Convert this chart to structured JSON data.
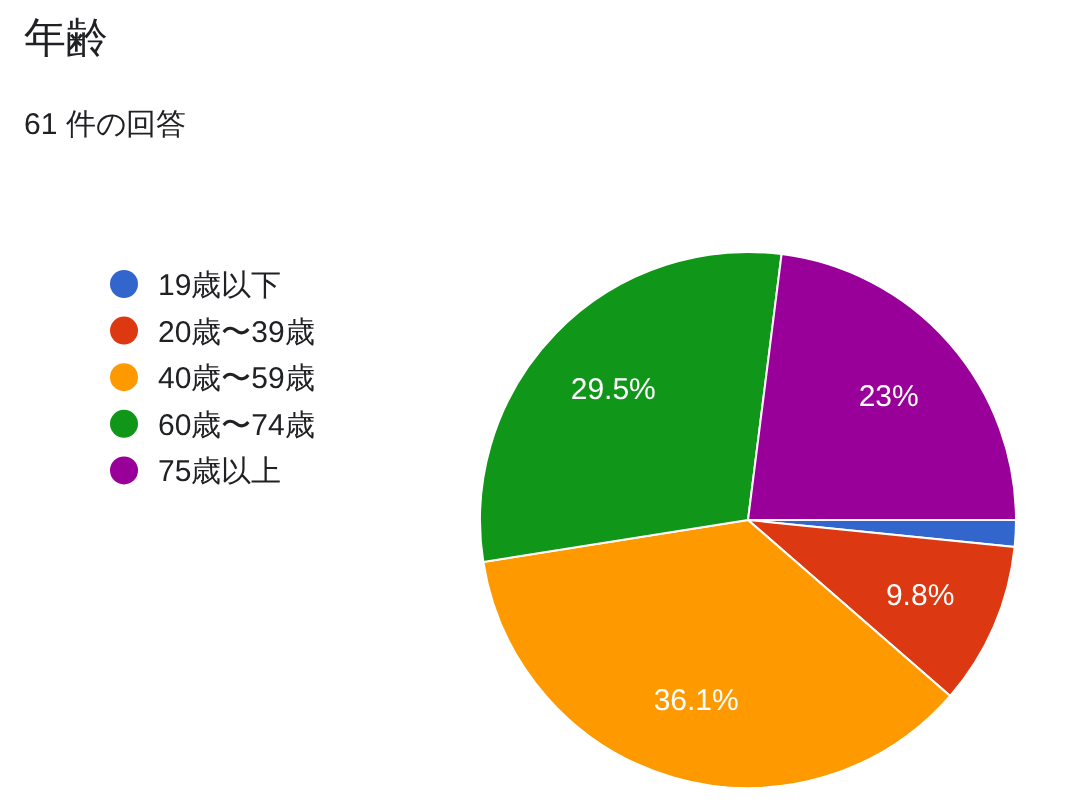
{
  "chart_data": {
    "type": "pie",
    "title": "年齢",
    "subtitle": "61 件の回答",
    "categories": [
      "19歳以下",
      "20歳〜39歳",
      "40歳〜59歳",
      "60歳〜74歳",
      "75歳以上"
    ],
    "values": [
      1.6,
      9.8,
      36.1,
      29.5,
      23
    ],
    "colors": [
      "#3366cc",
      "#dc3912",
      "#ff9900",
      "#109618",
      "#990099"
    ],
    "value_labels": [
      null,
      "9.8%",
      "36.1%",
      "29.5%",
      "23%"
    ],
    "legend": "left"
  }
}
